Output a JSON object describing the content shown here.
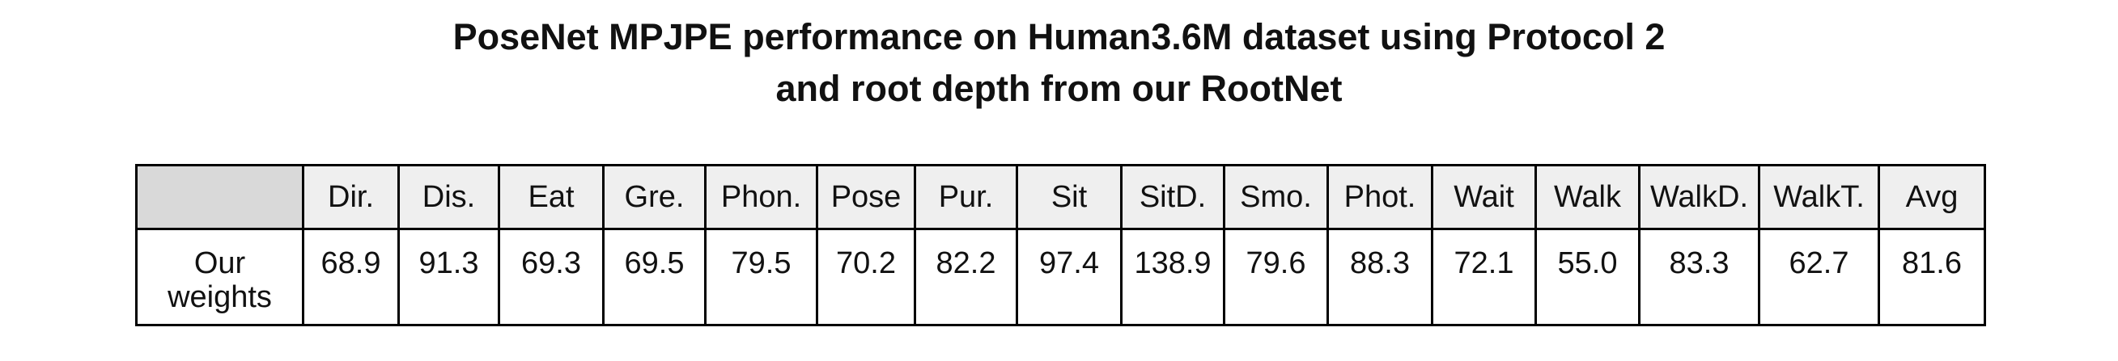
{
  "title": {
    "line1": "PoseNet MPJPE performance on Human3.6M dataset using Protocol 2",
    "line2": "and root depth from our RootNet"
  },
  "table": {
    "corner": "",
    "headers": [
      "Dir.",
      "Dis.",
      "Eat",
      "Gre.",
      "Phon.",
      "Pose",
      "Pur.",
      "Sit",
      "SitD.",
      "Smo.",
      "Phot.",
      "Wait",
      "Walk",
      "WalkD.",
      "WalkT.",
      "Avg"
    ],
    "row_label_line1": "Our",
    "row_label_line2": "weights",
    "values": [
      "68.9",
      "91.3",
      "69.3",
      "69.5",
      "79.5",
      "70.2",
      "82.2",
      "97.4",
      "138.9",
      "79.6",
      "88.3",
      "72.1",
      "55.0",
      "83.3",
      "62.7",
      "81.6"
    ]
  },
  "colors": {
    "header_bg": "#efefef",
    "corner_bg": "#d9d9d9",
    "border": "#000000"
  }
}
